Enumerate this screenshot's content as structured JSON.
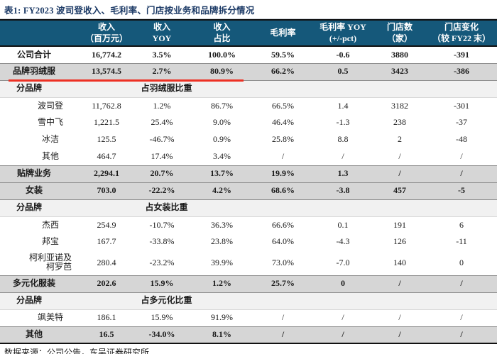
{
  "title": "表1:  FY2023 波司登收入、毛利率、门店按业务和品牌拆分情况",
  "colors": {
    "header_bg": "#15587a",
    "band_bg": "#d6d6d6",
    "section_bg": "#f1f1f1",
    "underline_red": "#ed3124",
    "title_color": "#1c3a66"
  },
  "table": {
    "columns": [
      {
        "line1": "",
        "line2": ""
      },
      {
        "line1": "收入",
        "line2": "（百万元）"
      },
      {
        "line1": "收入",
        "line2": "YOY"
      },
      {
        "line1": "收入",
        "line2": "占比"
      },
      {
        "line1": "毛利率",
        "line2": ""
      },
      {
        "line1": "毛利率 YOY",
        "line2": "(+/-pct)"
      },
      {
        "line1": "门店数",
        "line2": "（家）"
      },
      {
        "line1": "门店变化",
        "line2": "（较 FY22 末）"
      }
    ],
    "rows": [
      {
        "label": "公司合计",
        "kind": "total",
        "values": [
          "16,774.2",
          "3.5%",
          "100.0%",
          "59.5%",
          "-0.6",
          "3880",
          "-391"
        ]
      },
      {
        "label": "品牌羽绒服",
        "kind": "band",
        "underline": true,
        "values": [
          "13,574.5",
          "2.7%",
          "80.9%",
          "66.2%",
          "0.5",
          "3423",
          "-386"
        ]
      },
      {
        "label": "分品牌",
        "kind": "section",
        "span_text": "占羽绒服比重"
      },
      {
        "label": "波司登",
        "kind": "brand",
        "values": [
          "11,762.8",
          "1.2%",
          "86.7%",
          "66.5%",
          "1.4",
          "3182",
          "-301"
        ]
      },
      {
        "label": "雪中飞",
        "kind": "brand",
        "values": [
          "1,221.5",
          "25.4%",
          "9.0%",
          "46.4%",
          "-1.3",
          "238",
          "-37"
        ]
      },
      {
        "label": "冰洁",
        "kind": "brand",
        "values": [
          "125.5",
          "-46.7%",
          "0.9%",
          "25.8%",
          "8.8",
          "2",
          "-48"
        ]
      },
      {
        "label": "其他",
        "kind": "brand",
        "values": [
          "464.7",
          "17.4%",
          "3.4%",
          "/",
          "/",
          "/",
          "/"
        ]
      },
      {
        "label": "贴牌业务",
        "kind": "band",
        "values": [
          "2,294.1",
          "20.7%",
          "13.7%",
          "19.9%",
          "1.3",
          "/",
          "/"
        ]
      },
      {
        "label": "女装",
        "kind": "band",
        "values": [
          "703.0",
          "-22.2%",
          "4.2%",
          "68.6%",
          "-3.8",
          "457",
          "-5"
        ]
      },
      {
        "label": "分品牌",
        "kind": "section",
        "span_text": "占女装比重"
      },
      {
        "label": "杰西",
        "kind": "brand",
        "values": [
          "254.9",
          "-10.7%",
          "36.3%",
          "66.6%",
          "0.1",
          "191",
          "6"
        ]
      },
      {
        "label": "邦宝",
        "kind": "brand",
        "values": [
          "167.7",
          "-33.8%",
          "23.8%",
          "64.0%",
          "-4.3",
          "126",
          "-11"
        ]
      },
      {
        "label": "柯利亚诺及",
        "label2": "柯罗芭",
        "kind": "brand",
        "tall": true,
        "values": [
          "280.4",
          "-23.2%",
          "39.9%",
          "73.0%",
          "-7.0",
          "140",
          "0"
        ]
      },
      {
        "label": "多元化服装",
        "kind": "band",
        "values": [
          "202.6",
          "15.9%",
          "1.2%",
          "25.7%",
          "0",
          "/",
          "/"
        ]
      },
      {
        "label": "分品牌",
        "kind": "section",
        "span_text": "占多元化比重"
      },
      {
        "label": "飒美特",
        "kind": "brand",
        "values": [
          "186.1",
          "15.9%",
          "91.9%",
          "/",
          "/",
          "/",
          "/"
        ]
      },
      {
        "label": "其他",
        "kind": "band",
        "values": [
          "16.5",
          "-34.0%",
          "8.1%",
          "/",
          "/",
          "/",
          "/"
        ]
      }
    ]
  },
  "footer": {
    "source": "数据来源：公司公告，东吴证券研究所"
  }
}
